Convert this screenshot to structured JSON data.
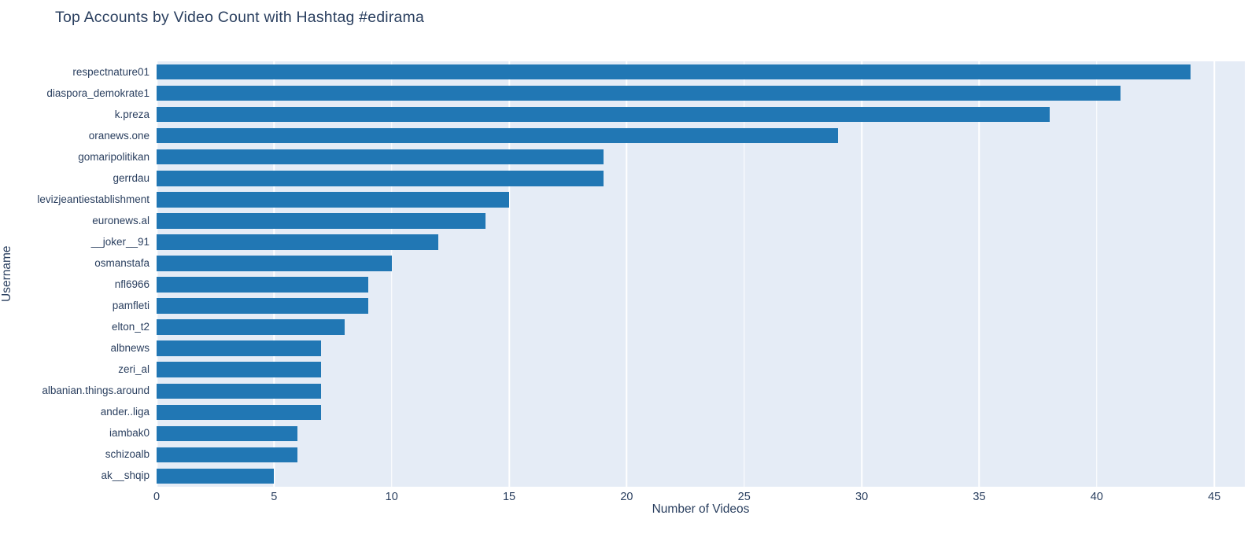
{
  "chart_data": {
    "type": "bar",
    "orientation": "horizontal",
    "title": "Top Accounts by Video Count with Hashtag #edirama",
    "xlabel": "Number of Videos",
    "ylabel": "Username",
    "categories": [
      "respectnature01",
      "diaspora_demokrate1",
      "k.preza",
      "oranews.one",
      "gomaripolitikan",
      "gerrdau",
      "levizjeantiestablishment",
      "euronews.al",
      "__joker__91",
      "osmanstafa",
      "nfl6966",
      "pamfleti",
      "elton_t2",
      "albnews",
      "zeri_al",
      "albanian.things.around",
      "ander..liga",
      "iambak0",
      "schizoalb",
      "ak__shqip"
    ],
    "values": [
      44,
      41,
      38,
      29,
      19,
      19,
      15,
      14,
      12,
      10,
      9,
      9,
      8,
      7,
      7,
      7,
      7,
      6,
      6,
      5
    ],
    "xticks": [
      0,
      5,
      10,
      15,
      20,
      25,
      30,
      35,
      40,
      45
    ],
    "xlim": [
      0,
      46.3
    ],
    "grid": true,
    "legend": "none",
    "colors": {
      "bar": "#2177b4",
      "plot_background": "#e5ecf6",
      "gridline": "#ffffff",
      "text": "#2a3f5f",
      "paper_background": "#ffffff"
    }
  }
}
